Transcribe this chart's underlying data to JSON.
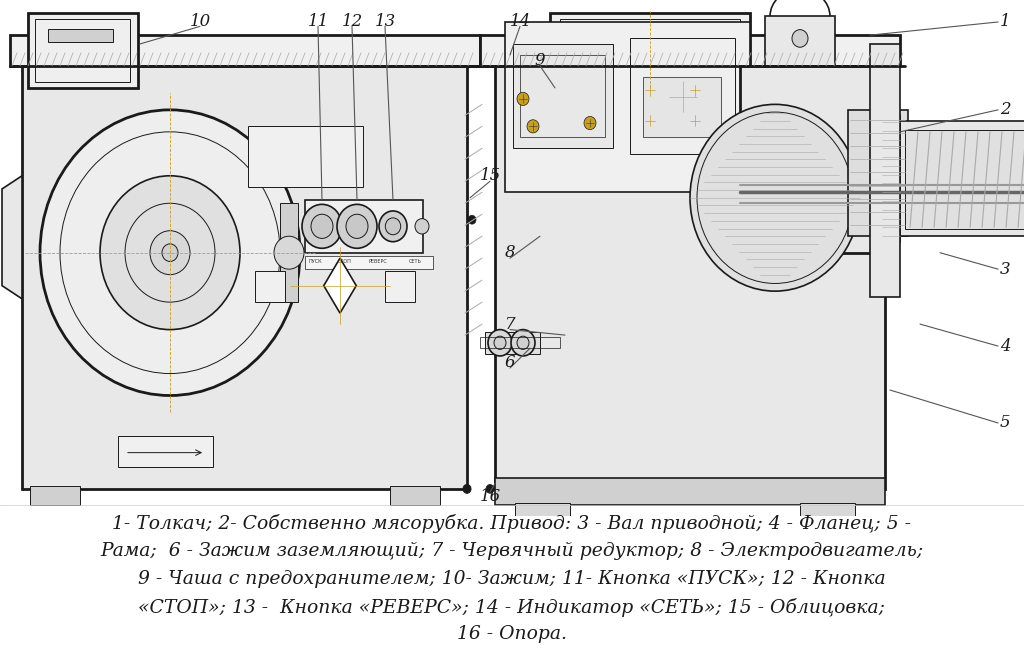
{
  "background_color": "#ffffff",
  "fig_width": 10.24,
  "fig_height": 6.62,
  "dpi": 100,
  "legend_lines": [
    "1- Толкач; 2- Собственно мясорубка. Привод: 3 - Вал приводной; 4 - Фланец; 5 -",
    "Рама;  6 - Зажим заземляющий; 7 - Червячный редуктор; 8 - Электродвигатель;",
    "9 - Чаша с предохранителем; 10- Зажим; 11- Кнопка «ПУСК»; 12 - Кнопка",
    "«СТОП»; 13 -  Кнопка «РЕВЕРС»; 14 - Индикатор «СЕТЬ»; 15 - Облицовка;",
    "16 - Опора."
  ],
  "drawing_color": "#1a1a1a",
  "golden_color": "#c8a020",
  "gray_light": "#e8e8e8",
  "gray_mid": "#d0d0d0",
  "gray_dark": "#aaaaaa",
  "callout_fontsize": 12,
  "legend_fontsize": 13.5
}
